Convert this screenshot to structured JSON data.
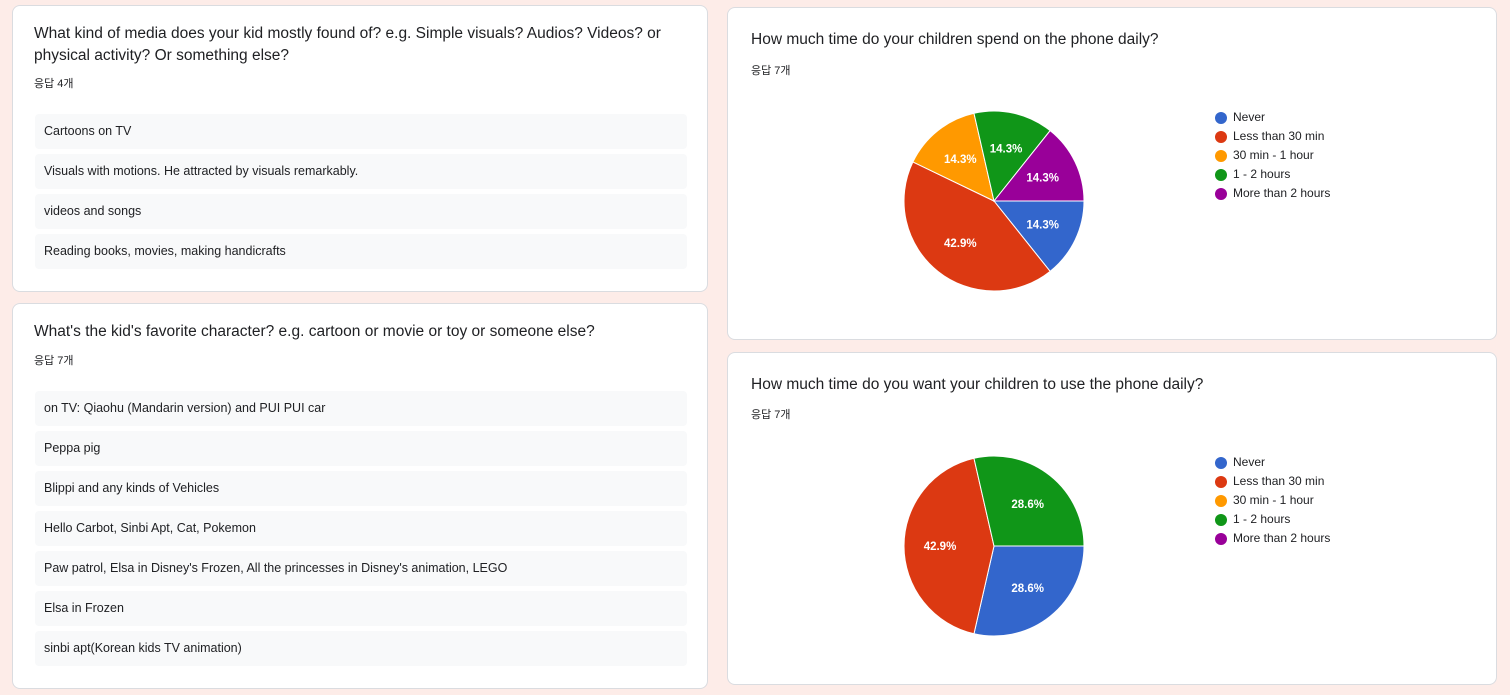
{
  "colors": {
    "never": "#3366cc",
    "less_30": "#dc3912",
    "min30_1h": "#ff9900",
    "h1_2": "#109618",
    "more_2": "#990099"
  },
  "left": {
    "media": {
      "question": "What kind of media does your kid mostly found of? e.g. Simple visuals? Audios? Videos? or physical activity? Or something else?",
      "count": "응답 4개",
      "responses": [
        "Cartoons on TV",
        "Visuals with motions. He attracted by visuals remarkably.",
        "videos and songs",
        "Reading books, movies, making handicrafts"
      ]
    },
    "character": {
      "question": "What's the kid's favorite character? e.g. cartoon or movie or toy or someone else?",
      "count": "응답 7개",
      "responses": [
        "on TV: Qiaohu (Mandarin version) and PUI PUI car",
        "Peppa pig",
        "Blippi and any kinds of Vehicles",
        "Hello Carbot, Sinbi Apt, Cat, Pokemon",
        "Paw patrol, Elsa in Disney's Frozen, All the princesses in Disney's animation, LEGO",
        "Elsa in Frozen",
        "sinbi apt(Korean kids TV animation)"
      ]
    }
  },
  "chart_data": [
    {
      "type": "pie",
      "title": "How much time do your children spend on the phone daily?",
      "subtitle": "응답 7개",
      "legend_position": "right",
      "categories": [
        "Never",
        "Less than 30 min",
        "30 min - 1 hour",
        "1 - 2 hours",
        "More than 2 hours"
      ],
      "values": [
        14.3,
        42.9,
        14.3,
        14.3,
        14.3
      ],
      "labels": [
        "14.3%",
        "42.9%",
        "14.3%",
        "14.3%",
        "14.3%"
      ],
      "colors": [
        "#3366cc",
        "#dc3912",
        "#ff9900",
        "#109618",
        "#990099"
      ]
    },
    {
      "type": "pie",
      "title": "How much time do you want your children to use the phone daily?",
      "subtitle": "응답 7개",
      "legend_position": "right",
      "categories": [
        "Never",
        "Less than 30 min",
        "30 min - 1 hour",
        "1 - 2 hours",
        "More than 2 hours"
      ],
      "values": [
        28.6,
        42.9,
        0,
        28.6,
        0
      ],
      "labels": [
        "28.6%",
        "42.9%",
        "",
        "28.6%",
        ""
      ],
      "colors": [
        "#3366cc",
        "#dc3912",
        "#ff9900",
        "#109618",
        "#990099"
      ]
    }
  ]
}
